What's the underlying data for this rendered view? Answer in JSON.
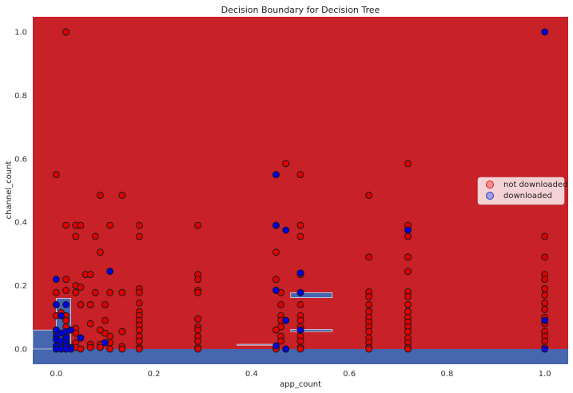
{
  "chart_data": {
    "type": "scatter",
    "title": "Decision Boundary for Decision Tree",
    "xlabel": "app_count",
    "ylabel": "channel_count",
    "xlim": [
      -0.048,
      1.048
    ],
    "ylim": [
      -0.048,
      1.048
    ],
    "xticks": [
      "0.0",
      "0.2",
      "0.4",
      "0.6",
      "0.8",
      "1.0"
    ],
    "yticks": [
      "0.0",
      "0.2",
      "0.4",
      "0.6",
      "0.8",
      "1.0"
    ],
    "grid": false,
    "legend": {
      "position": "center-right",
      "entries": [
        {
          "label": "not downloaded",
          "color": "#e31a1c"
        },
        {
          "label": "downloaded",
          "color": "#1f3fd6"
        }
      ]
    },
    "colors": {
      "region_not_downloaded": "#c82128",
      "region_downloaded": "#4666b0",
      "point_not_downloaded": "#e00000",
      "point_downloaded": "#0000e0"
    },
    "regions_downloaded": [
      {
        "x": [
          -0.048,
          1.048
        ],
        "y": [
          -0.048,
          0.0
        ]
      },
      {
        "x": [
          -0.048,
          0.0
        ],
        "y": [
          0.0,
          0.06
        ]
      },
      {
        "x": [
          0.0,
          0.03
        ],
        "y": [
          0.0,
          0.16
        ]
      },
      {
        "x": [
          0.0,
          0.01
        ],
        "y": [
          0.1,
          0.12
        ]
      },
      {
        "x": [
          0.48,
          0.565
        ],
        "y": [
          0.162,
          0.178
        ]
      },
      {
        "x": [
          0.48,
          0.565
        ],
        "y": [
          0.055,
          0.062
        ]
      },
      {
        "x": [
          0.37,
          0.45
        ],
        "y": [
          0.012,
          0.015
        ]
      }
    ],
    "series": [
      {
        "name": "not downloaded",
        "points": [
          [
            0.02,
            1.0
          ],
          [
            0.02,
            1.0
          ],
          [
            0.0,
            0.55
          ],
          [
            0.45,
            0.55
          ],
          [
            0.47,
            0.585
          ],
          [
            0.47,
            0.585
          ],
          [
            0.5,
            0.55
          ],
          [
            0.72,
            0.585
          ],
          [
            0.09,
            0.485
          ],
          [
            0.135,
            0.485
          ],
          [
            0.64,
            0.485
          ],
          [
            0.02,
            0.39
          ],
          [
            0.04,
            0.39
          ],
          [
            0.05,
            0.39
          ],
          [
            0.11,
            0.39
          ],
          [
            0.17,
            0.39
          ],
          [
            0.29,
            0.39
          ],
          [
            0.45,
            0.39
          ],
          [
            0.5,
            0.39
          ],
          [
            0.72,
            0.39
          ],
          [
            0.04,
            0.355
          ],
          [
            0.08,
            0.355
          ],
          [
            0.17,
            0.355
          ],
          [
            0.5,
            0.355
          ],
          [
            0.72,
            0.355
          ],
          [
            1.0,
            0.355
          ],
          [
            0.09,
            0.305
          ],
          [
            0.45,
            0.305
          ],
          [
            0.64,
            0.29
          ],
          [
            0.72,
            0.29
          ],
          [
            1.0,
            0.29
          ],
          [
            0.06,
            0.235
          ],
          [
            0.07,
            0.235
          ],
          [
            0.29,
            0.235
          ],
          [
            0.5,
            0.235
          ],
          [
            0.72,
            0.245
          ],
          [
            1.0,
            0.235
          ],
          [
            0.02,
            0.22
          ],
          [
            0.45,
            0.22
          ],
          [
            0.29,
            0.22
          ],
          [
            1.0,
            0.22
          ],
          [
            0.04,
            0.2
          ],
          [
            0.02,
            0.185
          ],
          [
            0.05,
            0.195
          ],
          [
            0.17,
            0.19
          ],
          [
            0.29,
            0.185
          ],
          [
            0.45,
            0.185
          ],
          [
            0.64,
            0.18
          ],
          [
            0.72,
            0.18
          ],
          [
            1.0,
            0.19
          ],
          [
            0.0,
            0.178
          ],
          [
            0.04,
            0.178
          ],
          [
            0.08,
            0.178
          ],
          [
            0.11,
            0.178
          ],
          [
            0.135,
            0.178
          ],
          [
            0.17,
            0.178
          ],
          [
            0.29,
            0.178
          ],
          [
            0.46,
            0.178
          ],
          [
            0.5,
            0.178
          ],
          [
            0.64,
            0.165
          ],
          [
            0.72,
            0.165
          ],
          [
            1.0,
            0.17
          ],
          [
            0.0,
            0.14
          ],
          [
            0.05,
            0.14
          ],
          [
            0.07,
            0.14
          ],
          [
            0.1,
            0.14
          ],
          [
            0.17,
            0.145
          ],
          [
            0.46,
            0.14
          ],
          [
            0.5,
            0.14
          ],
          [
            0.64,
            0.14
          ],
          [
            0.72,
            0.14
          ],
          [
            1.0,
            0.145
          ],
          [
            0.01,
            0.115
          ],
          [
            0.17,
            0.118
          ],
          [
            0.64,
            0.118
          ],
          [
            0.72,
            0.118
          ],
          [
            1.0,
            0.125
          ],
          [
            0.0,
            0.105
          ],
          [
            0.02,
            0.105
          ],
          [
            0.17,
            0.105
          ],
          [
            0.46,
            0.105
          ],
          [
            0.5,
            0.105
          ],
          [
            0.64,
            0.1
          ],
          [
            0.72,
            0.1
          ],
          [
            1.0,
            0.1
          ],
          [
            0.02,
            0.09
          ],
          [
            0.07,
            0.08
          ],
          [
            0.17,
            0.09
          ],
          [
            0.1,
            0.09
          ],
          [
            0.29,
            0.095
          ],
          [
            0.46,
            0.09
          ],
          [
            0.5,
            0.09
          ],
          [
            0.64,
            0.085
          ],
          [
            0.72,
            0.085
          ],
          [
            1.0,
            0.08
          ],
          [
            0.02,
            0.07
          ],
          [
            0.04,
            0.065
          ],
          [
            0.09,
            0.06
          ],
          [
            0.17,
            0.075
          ],
          [
            0.29,
            0.07
          ],
          [
            0.46,
            0.07
          ],
          [
            0.5,
            0.07
          ],
          [
            0.64,
            0.07
          ],
          [
            0.72,
            0.07
          ],
          [
            0.0,
            0.055
          ],
          [
            0.04,
            0.05
          ],
          [
            0.1,
            0.05
          ],
          [
            0.135,
            0.055
          ],
          [
            0.17,
            0.06
          ],
          [
            0.29,
            0.06
          ],
          [
            0.45,
            0.06
          ],
          [
            0.5,
            0.06
          ],
          [
            0.64,
            0.055
          ],
          [
            0.72,
            0.055
          ],
          [
            1.0,
            0.055
          ],
          [
            0.02,
            0.04
          ],
          [
            0.05,
            0.035
          ],
          [
            0.11,
            0.04
          ],
          [
            0.17,
            0.04
          ],
          [
            0.29,
            0.04
          ],
          [
            0.46,
            0.04
          ],
          [
            0.5,
            0.04
          ],
          [
            0.64,
            0.035
          ],
          [
            0.72,
            0.035
          ],
          [
            1.0,
            0.04
          ],
          [
            0.02,
            0.025
          ],
          [
            0.04,
            0.02
          ],
          [
            0.07,
            0.015
          ],
          [
            0.09,
            0.015
          ],
          [
            0.11,
            0.02
          ],
          [
            0.17,
            0.025
          ],
          [
            0.29,
            0.025
          ],
          [
            0.46,
            0.025
          ],
          [
            0.5,
            0.025
          ],
          [
            0.64,
            0.02
          ],
          [
            0.72,
            0.02
          ],
          [
            1.0,
            0.025
          ],
          [
            0.04,
            0.005
          ],
          [
            0.05,
            0.0
          ],
          [
            0.07,
            0.005
          ],
          [
            0.09,
            0.005
          ],
          [
            0.135,
            0.008
          ],
          [
            0.17,
            0.005
          ],
          [
            0.29,
            0.005
          ],
          [
            0.45,
            0.005
          ],
          [
            0.5,
            0.005
          ],
          [
            0.64,
            0.005
          ],
          [
            0.72,
            0.005
          ],
          [
            1.0,
            0.005
          ],
          [
            0.0,
            0.0
          ],
          [
            0.02,
            0.0
          ],
          [
            0.11,
            0.0
          ],
          [
            0.135,
            0.0
          ],
          [
            0.17,
            0.0
          ],
          [
            0.29,
            0.0
          ],
          [
            0.45,
            0.0
          ],
          [
            0.47,
            0.0
          ],
          [
            0.5,
            0.0
          ],
          [
            0.64,
            0.0
          ],
          [
            0.72,
            0.0
          ]
        ]
      },
      {
        "name": "downloaded",
        "points": [
          [
            1.0,
            1.0
          ],
          [
            0.45,
            0.55
          ],
          [
            0.45,
            0.39
          ],
          [
            0.47,
            0.375
          ],
          [
            0.72,
            0.375
          ],
          [
            0.11,
            0.245
          ],
          [
            0.5,
            0.24
          ],
          [
            0.0,
            0.22
          ],
          [
            0.45,
            0.185
          ],
          [
            0.5,
            0.178
          ],
          [
            0.0,
            0.14
          ],
          [
            0.02,
            0.14
          ],
          [
            0.01,
            0.105
          ],
          [
            0.47,
            0.09
          ],
          [
            1.0,
            0.09
          ],
          [
            0.0,
            0.06
          ],
          [
            0.02,
            0.055
          ],
          [
            0.01,
            0.05
          ],
          [
            0.5,
            0.06
          ],
          [
            0.03,
            0.06
          ],
          [
            0.0,
            0.04
          ],
          [
            0.02,
            0.035
          ],
          [
            0.05,
            0.035
          ],
          [
            0.0,
            0.03
          ],
          [
            0.01,
            0.025
          ],
          [
            0.02,
            0.02
          ],
          [
            0.0,
            0.01
          ],
          [
            0.01,
            0.005
          ],
          [
            0.02,
            0.01
          ],
          [
            0.03,
            0.005
          ],
          [
            0.1,
            0.02
          ],
          [
            0.45,
            0.01
          ],
          [
            0.0,
            0.0
          ],
          [
            0.01,
            0.0
          ],
          [
            0.02,
            0.0
          ],
          [
            0.03,
            0.0
          ],
          [
            0.47,
            0.0
          ],
          [
            1.0,
            0.0
          ]
        ]
      }
    ]
  }
}
